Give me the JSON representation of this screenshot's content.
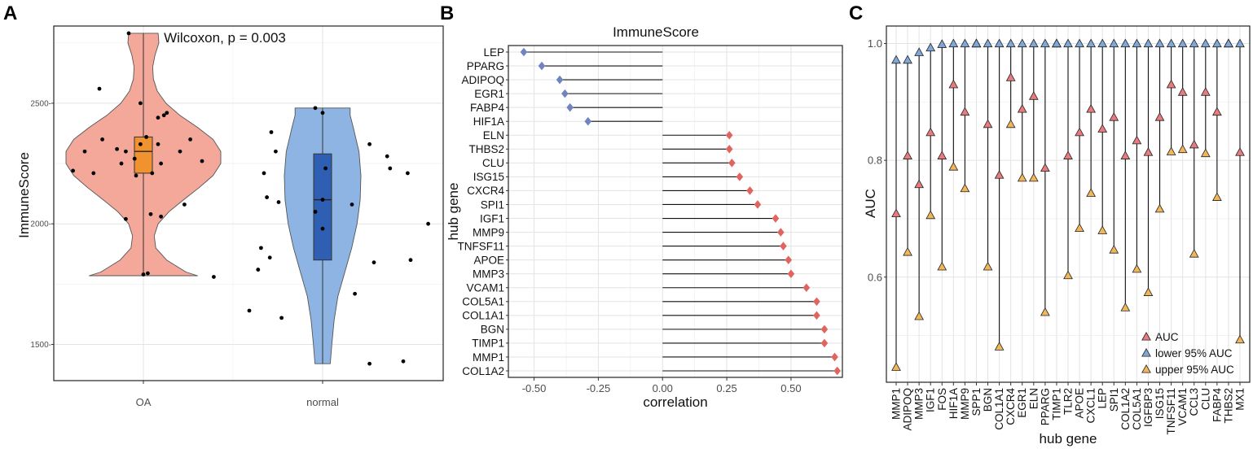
{
  "chart_data": [
    {
      "panel": "A",
      "type": "violin",
      "title": "",
      "annotation": "Wilcoxon, p = 0.003",
      "xlabel": "",
      "ylabel": "ImmuneScore",
      "categories": [
        "OA",
        "normal"
      ],
      "yticks": [
        1500,
        2000,
        2500
      ],
      "yticklabels": [
        "1500-",
        "2000-",
        "2500-"
      ],
      "ylim": [
        1350,
        2820
      ],
      "colors": {
        "OA_violin": "#f4a89a",
        "OA_box": "#f0922f",
        "normal_violin": "#8db4e2",
        "normal_box": "#2f5fb3",
        "points": "#000000"
      },
      "groups": [
        {
          "name": "OA",
          "min": 1785,
          "q1": 2210,
          "median": 2300,
          "q3": 2360,
          "max": 2790,
          "violin_profile": [
            [
              1785,
              0.7
            ],
            [
              1800,
              0.55
            ],
            [
              1850,
              0.3
            ],
            [
              1900,
              0.16
            ],
            [
              1950,
              0.14
            ],
            [
              2000,
              0.19
            ],
            [
              2050,
              0.33
            ],
            [
              2100,
              0.52
            ],
            [
              2150,
              0.72
            ],
            [
              2200,
              0.9
            ],
            [
              2250,
              1.0
            ],
            [
              2300,
              1.0
            ],
            [
              2350,
              0.9
            ],
            [
              2400,
              0.7
            ],
            [
              2450,
              0.47
            ],
            [
              2500,
              0.29
            ],
            [
              2550,
              0.18
            ],
            [
              2600,
              0.13
            ],
            [
              2650,
              0.12
            ],
            [
              2700,
              0.15
            ],
            [
              2750,
              0.2
            ],
            [
              2790,
              0.19
            ]
          ],
          "points": [
            [
              -0.1,
              2790
            ],
            [
              -0.3,
              2560
            ],
            [
              -0.28,
              2350
            ],
            [
              -0.4,
              2300
            ],
            [
              -0.48,
              2220
            ],
            [
              -0.34,
              2210
            ],
            [
              -0.18,
              2310
            ],
            [
              -0.12,
              2300
            ],
            [
              -0.06,
              2270
            ],
            [
              -0.02,
              2330
            ],
            [
              0.02,
              2360
            ],
            [
              -0.15,
              2250
            ],
            [
              -0.05,
              2200
            ],
            [
              0.06,
              2210
            ],
            [
              0.1,
              2440
            ],
            [
              0.14,
              2450
            ],
            [
              0.16,
              2460
            ],
            [
              0.12,
              2250
            ],
            [
              0.25,
              2300
            ],
            [
              0.32,
              2350
            ],
            [
              0.4,
              2260
            ],
            [
              0.28,
              2080
            ],
            [
              0.05,
              2040
            ],
            [
              0.12,
              2030
            ],
            [
              -0.12,
              2020
            ],
            [
              0.0,
              1790
            ],
            [
              0.03,
              1795
            ],
            [
              0.48,
              1780
            ],
            [
              -0.02,
              2500
            ],
            [
              0.1,
              2330
            ]
          ]
        },
        {
          "name": "normal",
          "min": 1420,
          "q1": 1850,
          "median": 2100,
          "q3": 2290,
          "max": 2480,
          "violin_profile": [
            [
              1420,
              0.2
            ],
            [
              1500,
              0.24
            ],
            [
              1600,
              0.3
            ],
            [
              1700,
              0.4
            ],
            [
              1800,
              0.58
            ],
            [
              1900,
              0.76
            ],
            [
              2000,
              0.9
            ],
            [
              2100,
              0.98
            ],
            [
              2200,
              1.0
            ],
            [
              2300,
              0.95
            ],
            [
              2400,
              0.8
            ],
            [
              2450,
              0.72
            ],
            [
              2480,
              0.72
            ]
          ],
          "points": [
            [
              -0.35,
              2380
            ],
            [
              -0.4,
              2210
            ],
            [
              -0.38,
              2110
            ],
            [
              -0.32,
              2300
            ],
            [
              -0.3,
              2090
            ],
            [
              -0.42,
              1900
            ],
            [
              -0.36,
              1860
            ],
            [
              -0.44,
              1810
            ],
            [
              -0.5,
              1640
            ],
            [
              -0.28,
              1610
            ],
            [
              -0.05,
              2480
            ],
            [
              0.0,
              2460
            ],
            [
              0.02,
              2230
            ],
            [
              0.0,
              2100
            ],
            [
              -0.05,
              2050
            ],
            [
              0.0,
              1980
            ],
            [
              0.32,
              2330
            ],
            [
              0.2,
              2080
            ],
            [
              0.22,
              1710
            ],
            [
              0.35,
              1840
            ],
            [
              0.44,
              2280
            ],
            [
              0.46,
              2230
            ],
            [
              0.58,
              2210
            ],
            [
              0.72,
              2000
            ],
            [
              0.6,
              1850
            ],
            [
              0.55,
              1430
            ],
            [
              0.32,
              1420
            ]
          ]
        }
      ]
    },
    {
      "panel": "B",
      "type": "lollipop",
      "title": "ImmuneScore",
      "xlabel": "correlation",
      "ylabel": "hub gene",
      "xlim": [
        -0.6,
        0.7
      ],
      "xticks": [
        -0.5,
        -0.25,
        0.0,
        0.25,
        0.5
      ],
      "xticklabels": [
        "-0.50",
        "-0.25",
        "0.00",
        "0.25",
        "0.50"
      ],
      "colors": {
        "negative": "#6f84c0",
        "positive": "#e06560"
      },
      "genes": [
        "LEP",
        "PPARG",
        "ADIPOQ",
        "EGR1",
        "FABP4",
        "HIF1A",
        "ELN",
        "THBS2",
        "CLU",
        "ISG15",
        "CXCR4",
        "SPI1",
        "IGF1",
        "MMP9",
        "TNFSF11",
        "APOE",
        "MMP3",
        "VCAM1",
        "COL5A1",
        "COL1A1",
        "BGN",
        "TIMP1",
        "MMP1",
        "COL1A2"
      ],
      "values": [
        -0.54,
        -0.47,
        -0.4,
        -0.38,
        -0.36,
        -0.29,
        0.26,
        0.26,
        0.27,
        0.3,
        0.34,
        0.37,
        0.44,
        0.46,
        0.47,
        0.49,
        0.5,
        0.56,
        0.6,
        0.6,
        0.63,
        0.63,
        0.67,
        0.68
      ]
    },
    {
      "panel": "C",
      "type": "range-dot",
      "title": "",
      "xlabel": "hub gene",
      "ylabel": "AUC",
      "ylim": [
        0.42,
        1.03
      ],
      "yticks": [
        0.6,
        0.8,
        1.0
      ],
      "yticklabels": [
        "0.6",
        "0.8",
        "1.0"
      ],
      "colors": {
        "AUC": "#e87b7e",
        "lower": "#7fa8d8",
        "upper": "#f2b65a"
      },
      "legend": {
        "position": "bottom-right",
        "entries": [
          "AUC",
          "lower 95% AUC",
          "upper 95% AUC"
        ]
      },
      "genes": [
        "MMP1",
        "ADIPOQ",
        "MMP3",
        "IGF1",
        "FOS",
        "HIF1A",
        "MMP9",
        "SPP1",
        "BGN",
        "COL1A1",
        "CXCR4",
        "EGR1",
        "ELN",
        "PPARG",
        "TIMP1",
        "TLR2",
        "APOE",
        "CXCL1",
        "LEP",
        "SPI1",
        "COL1A2",
        "COL5A1",
        "IGFBP3",
        "ISG15",
        "TNFSF11",
        "VCAM1",
        "CCL3",
        "CLU",
        "FABP4",
        "THBS2",
        "MX1"
      ],
      "series": [
        {
          "name": "AUC",
          "values": [
            0.709,
            0.808,
            0.759,
            0.848,
            0.808,
            0.93,
            0.883,
            1.0,
            0.862,
            0.775,
            0.942,
            0.888,
            0.91,
            0.787,
            1.0,
            0.808,
            0.848,
            0.888,
            0.854,
            0.874,
            0.808,
            0.834,
            0.814,
            0.874,
            0.93,
            0.917,
            0.827,
            0.917,
            0.883,
            1.0,
            0.814
          ]
        },
        {
          "name": "lower 95% AUC",
          "values": [
            0.972,
            0.972,
            0.985,
            0.993,
            0.999,
            1.0,
            1.0,
            1.0,
            1.0,
            1.0,
            1.0,
            1.0,
            1.0,
            1.0,
            1.0,
            1.0,
            1.0,
            1.0,
            1.0,
            1.0,
            1.0,
            1.0,
            1.0,
            1.0,
            1.0,
            1.0,
            1.0,
            1.0,
            1.0,
            1.0,
            1.0
          ]
        },
        {
          "name": "upper 95% AUC",
          "values": [
            0.446,
            0.643,
            0.533,
            0.706,
            0.618,
            0.789,
            0.752,
            1.0,
            0.618,
            0.481,
            0.862,
            0.77,
            0.77,
            0.54,
            1.0,
            0.603,
            0.684,
            0.744,
            0.68,
            0.647,
            0.548,
            0.614,
            0.574,
            0.717,
            0.815,
            0.819,
            0.64,
            0.812,
            0.737,
            1.0,
            0.493
          ]
        }
      ]
    }
  ]
}
